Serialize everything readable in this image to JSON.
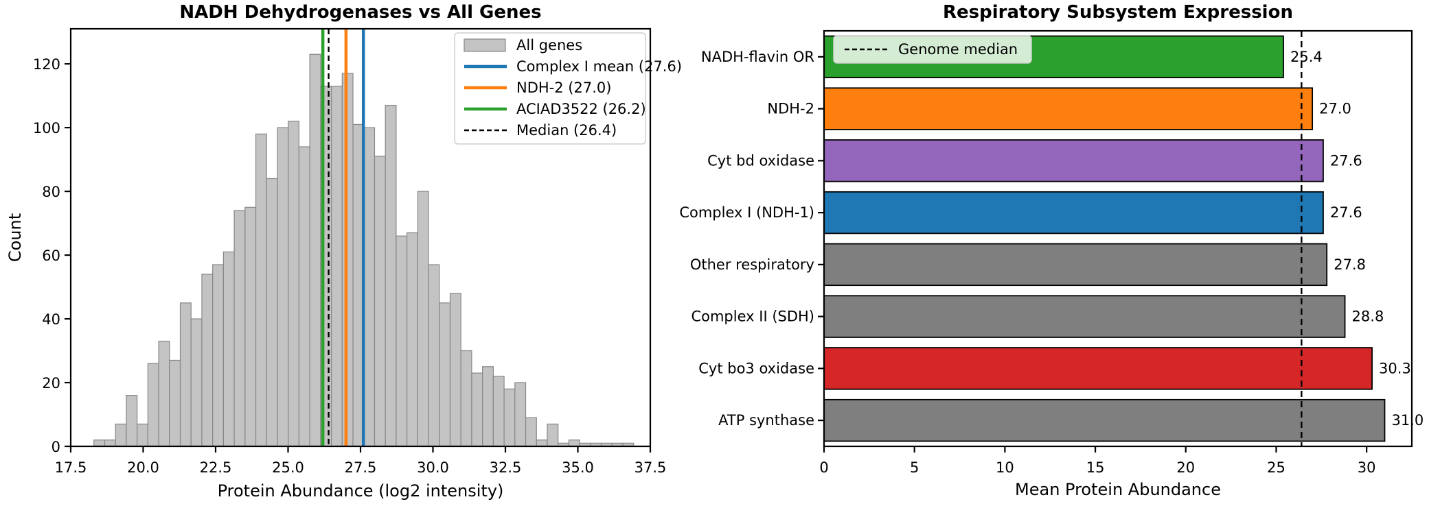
{
  "colors": {
    "hist_fill": "#c3c3c3",
    "hist_edge": "#878787",
    "blue": "#1f77b4",
    "orange": "#ff7f0e",
    "green": "#2ca02c",
    "purple": "#9467bd",
    "red": "#d62728",
    "gray": "#7f7f7f",
    "black": "#000000",
    "legend_border": "#cfcfcf"
  },
  "chart_data": [
    {
      "type": "bar",
      "subtype": "histogram",
      "title": "NADH Dehydrogenases vs All Genes",
      "xlabel": "Protein Abundance (log2 intensity)",
      "ylabel": "Count",
      "xlim": [
        17.5,
        37.5
      ],
      "ylim": [
        0,
        131
      ],
      "xtick_labels": [
        "17.5",
        "20.0",
        "22.5",
        "25.0",
        "27.5",
        "30.0",
        "32.5",
        "35.0",
        "37.5"
      ],
      "ytick_labels": [
        "0",
        "20",
        "40",
        "60",
        "80",
        "100",
        "120"
      ],
      "bin_start": 18.3,
      "bin_width": 0.3725,
      "counts": [
        2,
        2,
        7,
        16,
        7,
        26,
        33,
        27,
        45,
        40,
        54,
        57,
        61,
        74,
        75,
        98,
        84,
        100,
        102,
        94,
        123,
        113,
        113,
        117,
        101,
        100,
        91,
        107,
        66,
        67,
        80,
        57,
        45,
        48,
        30,
        23,
        25,
        22,
        18,
        20,
        9,
        2,
        7,
        1,
        2,
        1,
        1,
        1,
        1,
        1
      ],
      "vlines": [
        {
          "label": "Complex I mean (27.6)",
          "x": 27.6,
          "color": "#1f77b4",
          "style": "solid"
        },
        {
          "label": "NDH-2 (27.0)",
          "x": 27.0,
          "color": "#ff7f0e",
          "style": "solid"
        },
        {
          "label": "ACIAD3522 (26.2)",
          "x": 26.2,
          "color": "#2ca02c",
          "style": "solid"
        },
        {
          "label": "Median (26.4)",
          "x": 26.4,
          "color": "#000000",
          "style": "dashed"
        }
      ],
      "legend": [
        "All genes",
        "Complex I mean (27.6)",
        "NDH-2 (27.0)",
        "ACIAD3522 (26.2)",
        "Median (26.4)"
      ],
      "legend_position": "upper right"
    },
    {
      "type": "bar",
      "orientation": "horizontal",
      "title": "Respiratory Subsystem Expression",
      "xlabel": "Mean Protein Abundance",
      "categories": [
        "NADH-flavin OR",
        "NDH-2",
        "Cyt bd oxidase",
        "Complex I (NDH-1)",
        "Other respiratory",
        "Complex II (SDH)",
        "Cyt bo3 oxidase",
        "ATP synthase"
      ],
      "values": [
        25.4,
        27.0,
        27.6,
        27.6,
        27.8,
        28.8,
        30.3,
        31.0
      ],
      "value_labels": [
        "25.4",
        "27.0",
        "27.6",
        "27.6",
        "27.8",
        "28.8",
        "30.3",
        "31.0"
      ],
      "bar_colors": [
        "#2ca02c",
        "#ff7f0e",
        "#9467bd",
        "#1f77b4",
        "#7f7f7f",
        "#7f7f7f",
        "#d62728",
        "#7f7f7f"
      ],
      "xlim": [
        0,
        32.5
      ],
      "xtick_labels": [
        "0",
        "5",
        "10",
        "15",
        "20",
        "25",
        "30"
      ],
      "median_line": {
        "label": "Genome median",
        "x": 26.4,
        "style": "dashed"
      },
      "legend": [
        "Genome median"
      ],
      "legend_position": "upper left"
    }
  ]
}
